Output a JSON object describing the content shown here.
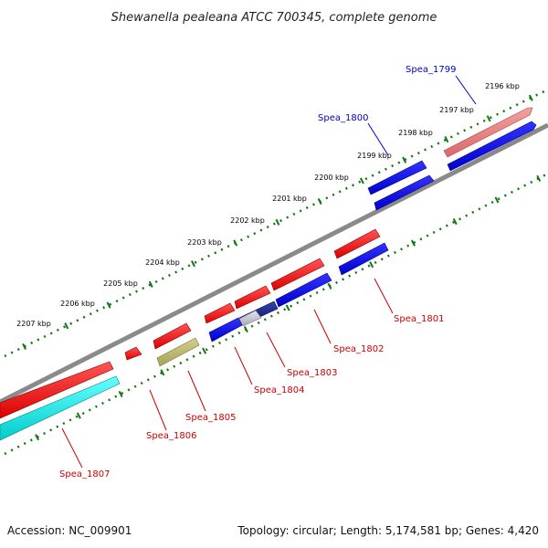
{
  "title": "Shewanella pealeana ATCC 700345, complete genome",
  "footer": {
    "accession": "Accession: NC_009901",
    "summary": "Topology: circular; Length: 5,174,581 bp; Genes: 4,420"
  },
  "colors": {
    "label_blue": "#0000c8",
    "label_red": "#cc0000",
    "backbone": "#888888",
    "ticks": "#117711"
  },
  "scale_labels": [
    "2196 kbp",
    "2197 kbp",
    "2198 kbp",
    "2199 kbp",
    "2200 kbp",
    "2201 kbp",
    "2202 kbp",
    "2203 kbp",
    "2204 kbp",
    "2205 kbp",
    "2206 kbp",
    "2207 kbp"
  ],
  "gene_labels": [
    {
      "text": "Spea_1799",
      "color": "#0000c8"
    },
    {
      "text": "Spea_1800",
      "color": "#0000c8"
    },
    {
      "text": "Spea_1801",
      "color": "#cc0000"
    },
    {
      "text": "Spea_1802",
      "color": "#cc0000"
    },
    {
      "text": "Spea_1803",
      "color": "#cc0000"
    },
    {
      "text": "Spea_1804",
      "color": "#cc0000"
    },
    {
      "text": "Spea_1805",
      "color": "#cc0000"
    },
    {
      "text": "Spea_1806",
      "color": "#cc0000"
    },
    {
      "text": "Spea_1807",
      "color": "#cc0000"
    }
  ]
}
